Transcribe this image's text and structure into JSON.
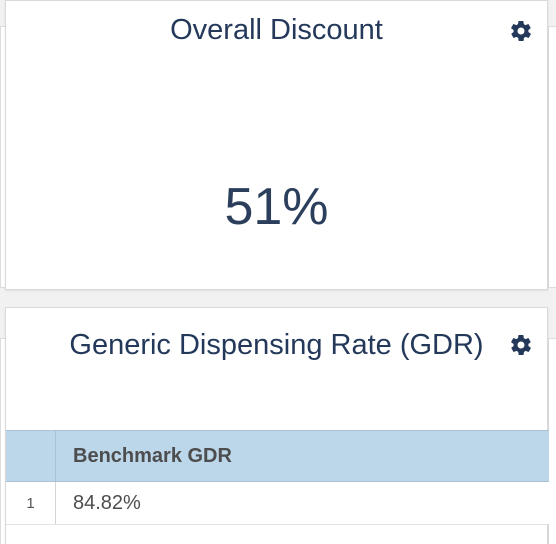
{
  "discount_card": {
    "title": "Overall Discount",
    "value": "51%",
    "settings_icon": "gear-icon"
  },
  "gdr_card": {
    "title": "Generic Dispensing Rate (GDR)",
    "settings_icon": "gear-icon",
    "table": {
      "columns": [
        "",
        "Benchmark GDR"
      ],
      "rows": [
        {
          "index": "1",
          "benchmark_gdr": "84.82%"
        }
      ]
    }
  },
  "colors": {
    "title_text": "#24395a",
    "header_bg": "#bcd7ea",
    "cell_text": "#4d4d4d",
    "page_bg": "#f1f1f1"
  }
}
